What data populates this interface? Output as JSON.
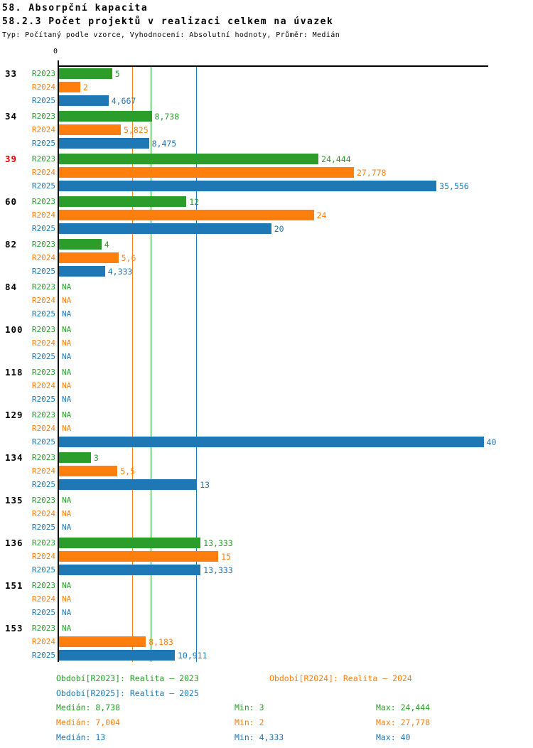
{
  "header": {
    "title": "58. Absorpční kapacita",
    "subtitle": "58.2.3 Počet projektů v realizaci celkem na úvazek",
    "meta": "Typ: Počítaný podle vzorce, Vyhodnocení: Absolutní hodnoty, Průměr: Medián"
  },
  "axis": {
    "zero_label": "0"
  },
  "colors": {
    "r2023": "#2A9D2A",
    "r2024": "#FF7F0E",
    "r2025": "#1F77B4",
    "highlight_row": "#DD0000",
    "axis": "#000000"
  },
  "chart_data": {
    "type": "bar",
    "orientation": "horizontal",
    "title": "58.2.3 Počet projektů v realizaci celkem na úvazek",
    "xlim": [
      0,
      40.5
    ],
    "grid": "vertical median lines per series",
    "legend_position": "bottom",
    "series_names": [
      "R2023",
      "R2024",
      "R2025"
    ],
    "series_colors": [
      "#2A9D2A",
      "#FF7F0E",
      "#1F77B4"
    ],
    "median_lines": [
      {
        "series_index": 1,
        "value": 7.004
      },
      {
        "series_index": 0,
        "value": 8.738
      },
      {
        "series_index": 2,
        "value": 13
      }
    ],
    "groups": [
      {
        "id": "33",
        "highlight": false,
        "values": [
          5,
          2,
          4.667
        ],
        "labels": [
          "5",
          "2",
          "4,667"
        ]
      },
      {
        "id": "34",
        "highlight": false,
        "values": [
          8.738,
          5.825,
          8.475
        ],
        "labels": [
          "8,738",
          "5,825",
          "8,475"
        ]
      },
      {
        "id": "39",
        "highlight": true,
        "values": [
          24.444,
          27.778,
          35.556
        ],
        "labels": [
          "24,444",
          "27,778",
          "35,556"
        ]
      },
      {
        "id": "60",
        "highlight": false,
        "values": [
          12,
          24,
          20
        ],
        "labels": [
          "12",
          "24",
          "20"
        ]
      },
      {
        "id": "82",
        "highlight": false,
        "values": [
          4,
          5.6,
          4.333
        ],
        "labels": [
          "4",
          "5,6",
          "4,333"
        ]
      },
      {
        "id": "84",
        "highlight": false,
        "values": [
          null,
          null,
          null
        ],
        "labels": [
          "NA",
          "NA",
          "NA"
        ]
      },
      {
        "id": "100",
        "highlight": false,
        "values": [
          null,
          null,
          null
        ],
        "labels": [
          "NA",
          "NA",
          "NA"
        ]
      },
      {
        "id": "118",
        "highlight": false,
        "values": [
          null,
          null,
          null
        ],
        "labels": [
          "NA",
          "NA",
          "NA"
        ]
      },
      {
        "id": "129",
        "highlight": false,
        "values": [
          null,
          null,
          40
        ],
        "labels": [
          "NA",
          "NA",
          "40"
        ]
      },
      {
        "id": "134",
        "highlight": false,
        "values": [
          3,
          5.5,
          13
        ],
        "labels": [
          "3",
          "5,5",
          "13"
        ]
      },
      {
        "id": "135",
        "highlight": false,
        "values": [
          null,
          null,
          null
        ],
        "labels": [
          "NA",
          "NA",
          "NA"
        ]
      },
      {
        "id": "136",
        "highlight": false,
        "values": [
          13.333,
          15,
          13.333
        ],
        "labels": [
          "13,333",
          "15",
          "13,333"
        ]
      },
      {
        "id": "151",
        "highlight": false,
        "values": [
          null,
          null,
          null
        ],
        "labels": [
          "NA",
          "NA",
          "NA"
        ]
      },
      {
        "id": "153",
        "highlight": false,
        "values": [
          null,
          8.183,
          10.911
        ],
        "labels": [
          "NA",
          "8,183",
          "10,911"
        ]
      }
    ]
  },
  "legend": {
    "items": [
      "Období[R2023]: Realita – 2023",
      "Období[R2024]: Realita – 2024",
      "Období[R2025]: Realita – 2025"
    ],
    "stats": [
      {
        "median": "Medián: 8,738",
        "min": "Min: 3",
        "max": "Max: 24,444"
      },
      {
        "median": "Medián: 7,004",
        "min": "Min: 2",
        "max": "Max: 27,778"
      },
      {
        "median": "Medián: 13",
        "min": "Min: 4,333",
        "max": "Max: 40"
      }
    ]
  }
}
